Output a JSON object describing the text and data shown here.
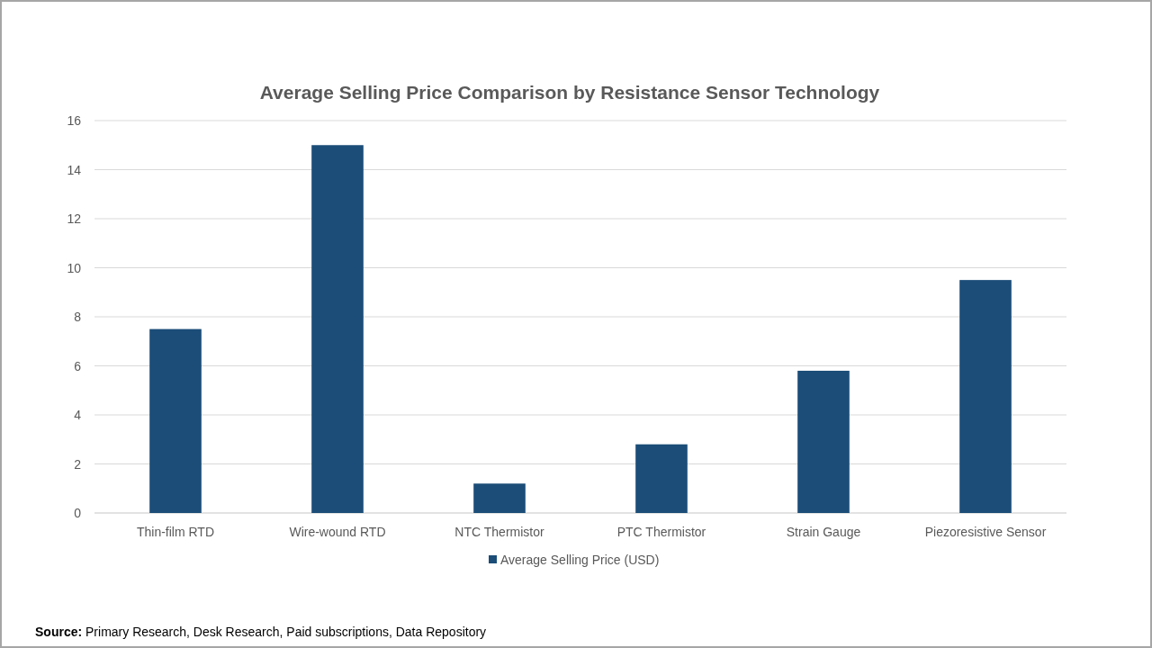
{
  "chart_data": {
    "type": "bar",
    "title": "Average Selling Price Comparison by Resistance Sensor Technology",
    "categories": [
      "Thin-film RTD",
      "Wire-wound RTD",
      "NTC Thermistor",
      "PTC Thermistor",
      "Strain Gauge",
      "Piezoresistive Sensor"
    ],
    "series": [
      {
        "name": "Average Selling Price (USD)",
        "color": "#1b4d78",
        "values": [
          7.5,
          15,
          1.2,
          2.8,
          5.8,
          9.5
        ]
      }
    ],
    "ylim": [
      0,
      16
    ],
    "yticks": [
      0,
      2,
      4,
      6,
      8,
      10,
      12,
      14,
      16
    ],
    "grid": "y",
    "legend": "bottom",
    "annotations": [
      "Source: Primary Research, Desk Research, Paid subscriptions, Data Repository"
    ]
  }
}
